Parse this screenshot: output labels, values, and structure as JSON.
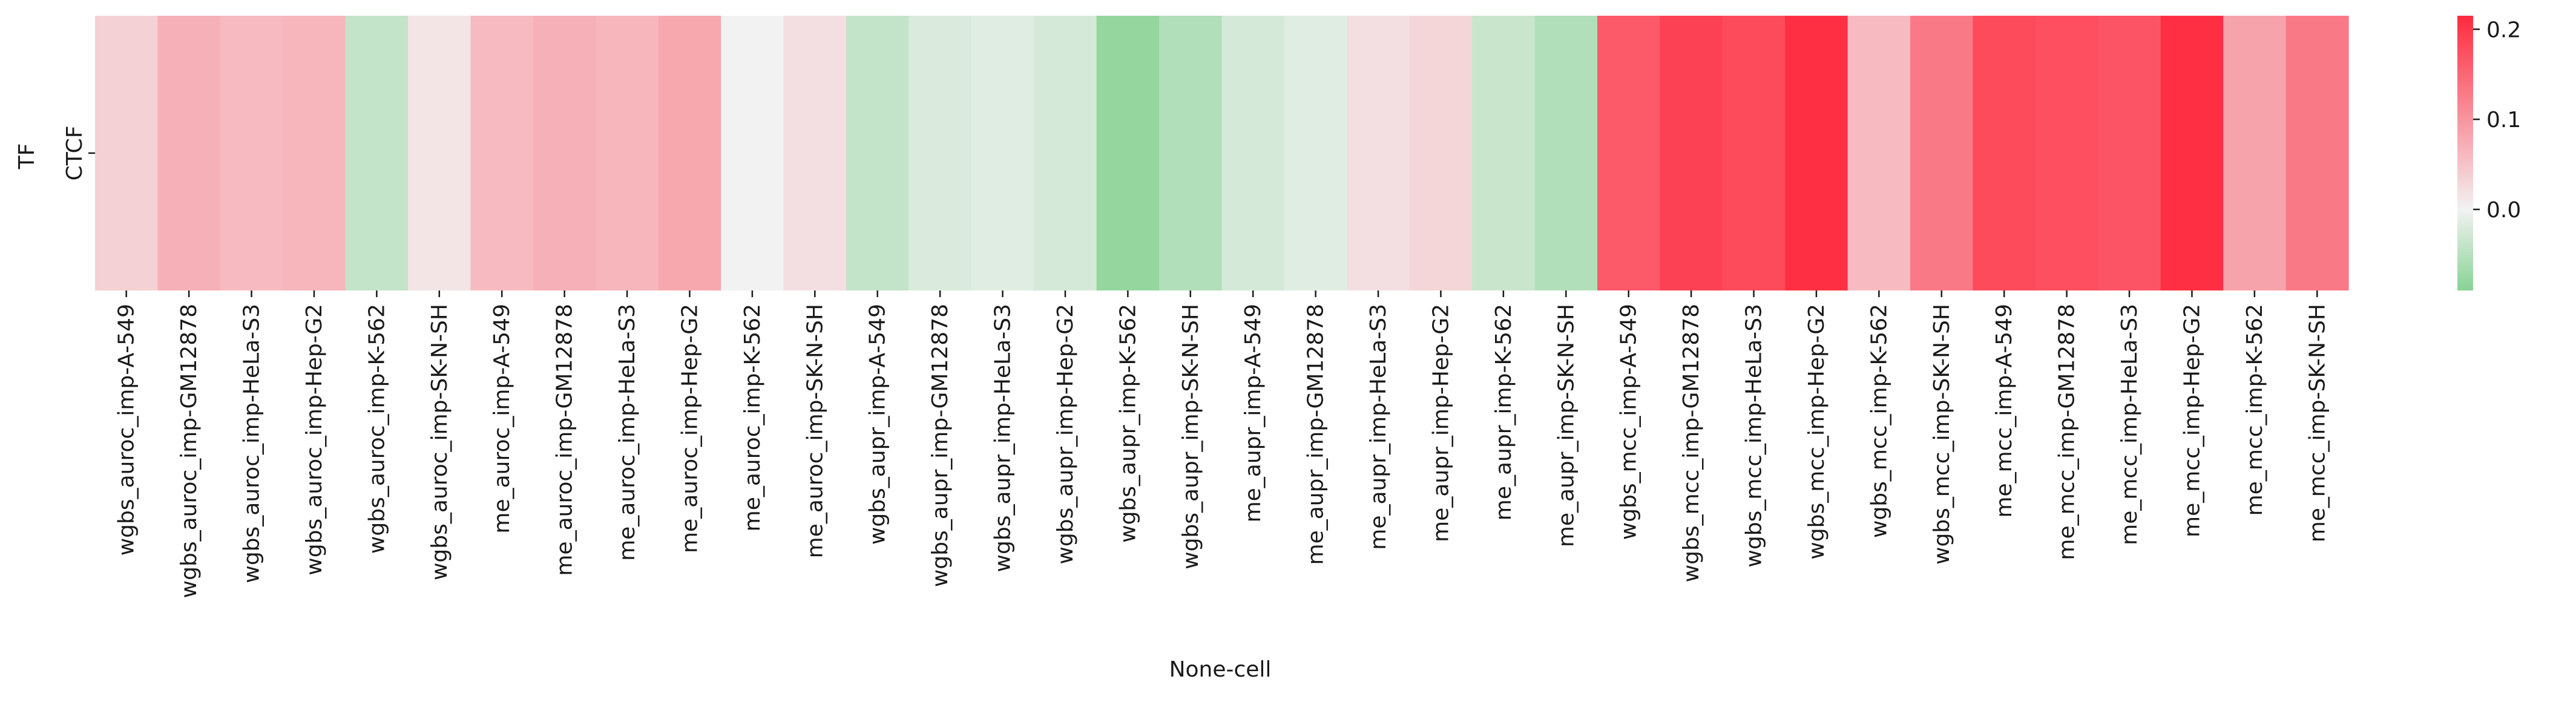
{
  "chart_data": {
    "type": "heatmap",
    "title": "",
    "xlabel": "None-cell",
    "ylabel": "TF",
    "rows": [
      "CTCF"
    ],
    "columns": [
      "wgbs_auroc_imp-A-549",
      "wgbs_auroc_imp-GM12878",
      "wgbs_auroc_imp-HeLa-S3",
      "wgbs_auroc_imp-Hep-G2",
      "wgbs_auroc_imp-K-562",
      "wgbs_auroc_imp-SK-N-SH",
      "me_auroc_imp-A-549",
      "me_auroc_imp-GM12878",
      "me_auroc_imp-HeLa-S3",
      "me_auroc_imp-Hep-G2",
      "me_auroc_imp-K-562",
      "me_auroc_imp-SK-N-SH",
      "wgbs_aupr_imp-A-549",
      "wgbs_aupr_imp-GM12878",
      "wgbs_aupr_imp-HeLa-S3",
      "wgbs_aupr_imp-Hep-G2",
      "wgbs_aupr_imp-K-562",
      "wgbs_aupr_imp-SK-N-SH",
      "me_aupr_imp-A-549",
      "me_aupr_imp-GM12878",
      "me_aupr_imp-HeLa-S3",
      "me_aupr_imp-Hep-G2",
      "me_aupr_imp-K-562",
      "me_aupr_imp-SK-N-SH",
      "wgbs_mcc_imp-A-549",
      "wgbs_mcc_imp-GM12878",
      "wgbs_mcc_imp-HeLa-S3",
      "wgbs_mcc_imp-Hep-G2",
      "wgbs_mcc_imp-K-562",
      "wgbs_mcc_imp-SK-N-SH",
      "me_mcc_imp-A-549",
      "me_mcc_imp-GM12878",
      "me_mcc_imp-HeLa-S3",
      "me_mcc_imp-Hep-G2",
      "me_mcc_imp-K-562",
      "me_mcc_imp-SK-N-SH"
    ],
    "values": [
      [
        0.035,
        0.07,
        0.06,
        0.065,
        -0.04,
        0.015,
        0.06,
        0.07,
        0.065,
        0.08,
        0.0,
        0.02,
        -0.04,
        -0.02,
        -0.015,
        -0.025,
        -0.08,
        -0.055,
        -0.025,
        -0.015,
        0.02,
        0.03,
        -0.035,
        -0.055,
        0.165,
        0.19,
        0.18,
        0.21,
        0.06,
        0.13,
        0.18,
        0.175,
        0.17,
        0.21,
        0.085,
        0.13
      ]
    ],
    "colorbar": {
      "min": -0.09,
      "max": 0.215,
      "ticks": [
        0.2,
        0.1,
        0.0
      ],
      "tick_labels": [
        "0.2",
        "0.1",
        "0.0"
      ],
      "colors": {
        "low": "#88d394",
        "mid": "#f2f2f2",
        "high": "#ff2a3f"
      }
    },
    "grid": false
  }
}
